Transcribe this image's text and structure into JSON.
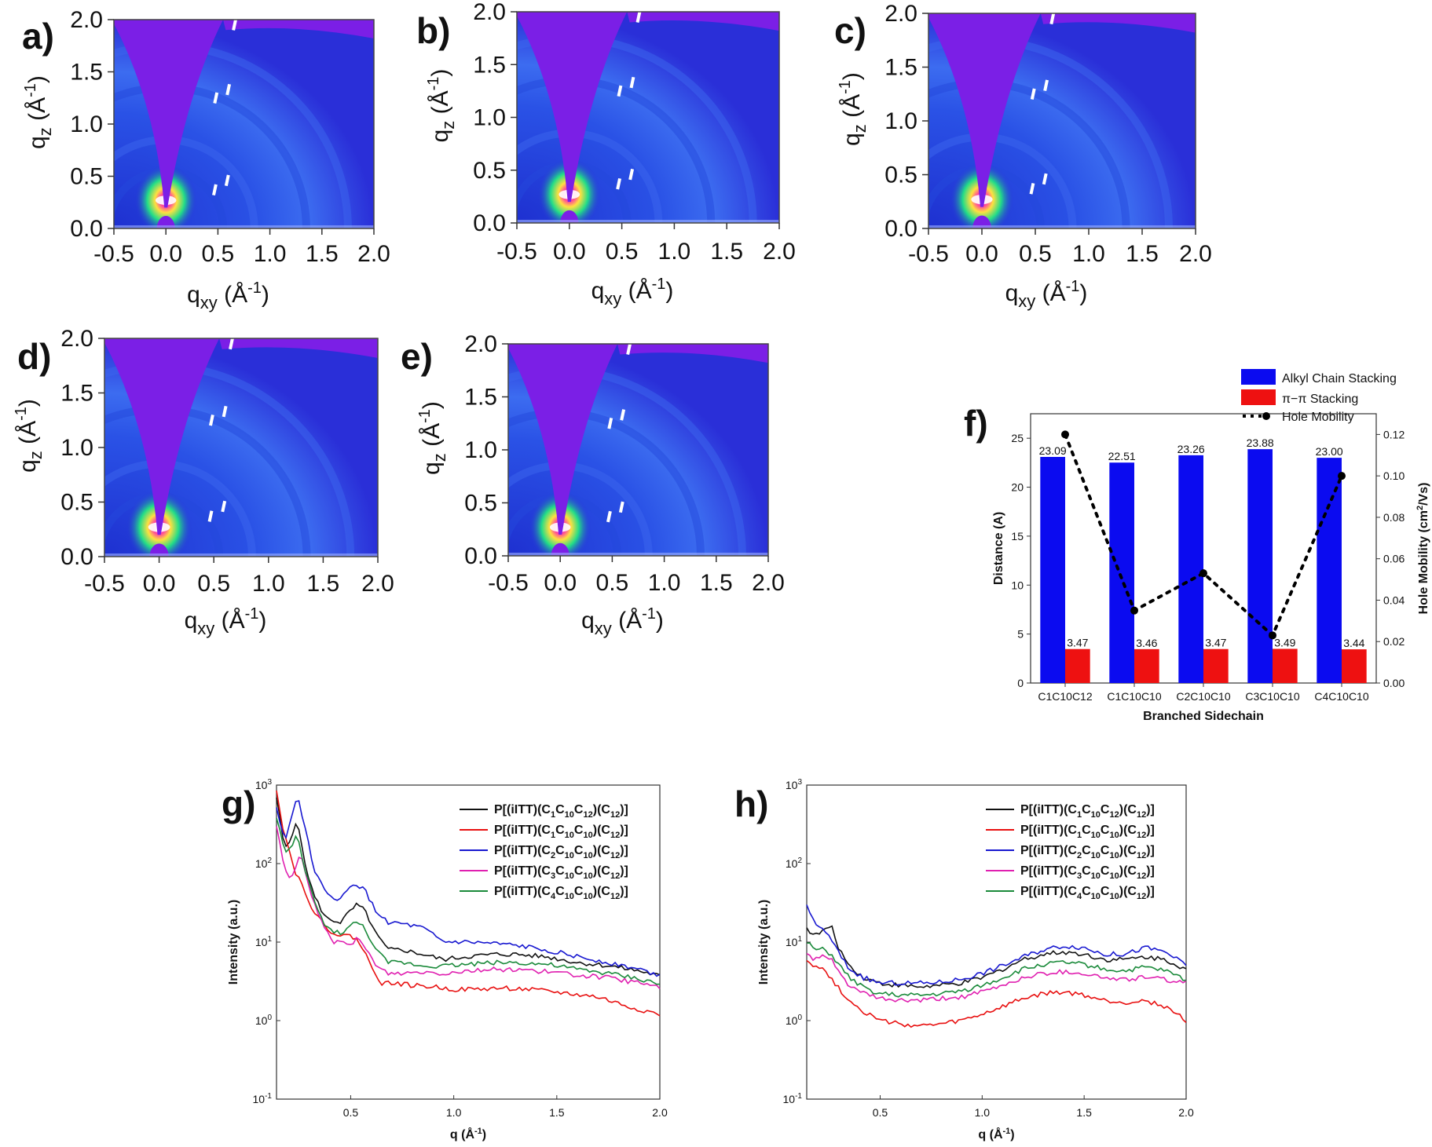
{
  "panels": [
    "a)",
    "b)",
    "c)",
    "d)",
    "e)",
    "f)",
    "g)",
    "h)"
  ],
  "giwaxs": {
    "xlabel_main": "q",
    "xlabel_sub": "xy",
    "xlabel_unit": "(Å",
    "xlabel_exp": "-1",
    "xlabel_close": ")",
    "ylabel_main": "q",
    "ylabel_sub": "z",
    "ylabel_unit": "(Å",
    "ylabel_exp": "-1",
    "ylabel_close": ")",
    "xticks": [
      "-0.5",
      "0.0",
      "0.5",
      "1.0",
      "1.5",
      "2.0"
    ],
    "yticks": [
      "0.0",
      "0.5",
      "1.0",
      "1.5",
      "2.0"
    ],
    "xlim": [
      -0.5,
      2.0
    ],
    "ylim": [
      0.0,
      2.0
    ],
    "colors": {
      "background": "#2a2fd8",
      "mask": "#7b1fe6",
      "hot": "#1fd47a",
      "peak": "#ffffff"
    }
  },
  "chart_data": [
    {
      "panel": "f)",
      "type": "bar",
      "categories": [
        "C1C10C12",
        "C1C10C10",
        "C2C10C10",
        "C3C10C10",
        "C4C10C10"
      ],
      "xlabel": "Branched Sidechain",
      "ylabel": "Distance (A)",
      "y2label_main": "Hole Mobility (cm",
      "y2label_exp": "2",
      "y2label_rest": "/Vs)",
      "ylim": [
        0,
        27.5
      ],
      "y2lim": [
        0,
        0.13
      ],
      "yticks": [
        "0",
        "5",
        "10",
        "15",
        "20",
        "25"
      ],
      "y2ticks": [
        "0.00",
        "0.02",
        "0.04",
        "0.06",
        "0.08",
        "0.10",
        "0.12"
      ],
      "series": [
        {
          "name": "Alkyl Chain Stacking",
          "color": "#0b0bf0",
          "values": [
            23.09,
            22.51,
            23.26,
            23.88,
            23.0
          ],
          "labels": [
            "23.09",
            "22.51",
            "23.26",
            "23.88",
            "23.00"
          ]
        },
        {
          "name": "π−π Stacking",
          "color": "#ee1111",
          "values": [
            3.47,
            3.46,
            3.47,
            3.49,
            3.44
          ],
          "labels": [
            "3.47",
            "3.46",
            "3.47",
            "3.49",
            "3.44"
          ]
        },
        {
          "name": "Hole Mobility",
          "color": "#000000",
          "axis": "right",
          "values": [
            0.12,
            0.035,
            0.053,
            0.023,
            0.1
          ]
        }
      ],
      "legend": "top-right"
    },
    {
      "panel": "g)",
      "type": "line",
      "xlabel": "q",
      "xlabel_unit": "(Å",
      "xlabel_exp": "-1",
      "xlabel_close": ")",
      "ylabel": "Intensity (a.u.)",
      "yscale": "log",
      "xlim": [
        0.14,
        2.0
      ],
      "ylim": [
        0.1,
        1000
      ],
      "xticks": [
        "0.5",
        "1.0",
        "1.5",
        "2.0"
      ],
      "ytick_exps": [
        "-1",
        "0",
        "1",
        "2",
        "3"
      ],
      "legend": "top-right",
      "series": [
        {
          "name": "P[(iITT)(C1C10C12)(C12)]",
          "subs": [
            "1",
            "10",
            "12"
          ],
          "color": "#111111",
          "x": [
            0.14,
            0.18,
            0.21,
            0.24,
            0.27,
            0.32,
            0.38,
            0.45,
            0.5,
            0.53,
            0.57,
            0.62,
            0.68,
            0.75,
            0.85,
            0.95,
            1.05,
            1.2,
            1.3,
            1.45,
            1.6,
            1.75,
            1.9,
            2.0
          ],
          "y": [
            700,
            150,
            200,
            400,
            120,
            40,
            20,
            18,
            25,
            30,
            25,
            13,
            8,
            8,
            7,
            6,
            6.5,
            7,
            7,
            6.5,
            5.5,
            5,
            4.3,
            3.7
          ]
        },
        {
          "name": "P[(iITT)(C1C10C10)(C12)]",
          "subs": [
            "1",
            "10",
            "10"
          ],
          "color": "#e81010",
          "x": [
            0.14,
            0.17,
            0.2,
            0.23,
            0.27,
            0.32,
            0.38,
            0.45,
            0.5,
            0.53,
            0.56,
            0.6,
            0.65,
            0.72,
            0.8,
            0.9,
            1.0,
            1.1,
            1.25,
            1.35,
            1.5,
            1.7,
            1.85,
            2.0
          ],
          "y": [
            900,
            300,
            150,
            80,
            50,
            25,
            15,
            12,
            12,
            11,
            8,
            5,
            3,
            3,
            2.8,
            2.7,
            2.5,
            2.5,
            2.6,
            2.5,
            2.3,
            2.0,
            1.5,
            1.2
          ]
        },
        {
          "name": "P[(iITT)(C2C10C10)(C12)]",
          "subs": [
            "2",
            "10",
            "10"
          ],
          "color": "#1818d0",
          "x": [
            0.14,
            0.18,
            0.21,
            0.24,
            0.27,
            0.32,
            0.38,
            0.45,
            0.5,
            0.53,
            0.57,
            0.62,
            0.68,
            0.75,
            0.85,
            0.95,
            1.05,
            1.2,
            1.3,
            1.45,
            1.6,
            1.75,
            1.9,
            2.0
          ],
          "y": [
            500,
            200,
            350,
            800,
            350,
            90,
            40,
            35,
            50,
            55,
            45,
            25,
            18,
            17,
            15,
            10,
            10,
            9.5,
            9,
            8,
            6.5,
            5.5,
            4.5,
            3.8
          ]
        },
        {
          "name": "P[(iITT)(C3C10C10)(C12)]",
          "subs": [
            "3",
            "10",
            "10"
          ],
          "color": "#e020b0",
          "x": [
            0.14,
            0.17,
            0.19,
            0.21,
            0.23,
            0.25,
            0.27,
            0.3,
            0.35,
            0.42,
            0.5,
            0.53,
            0.57,
            0.62,
            0.68,
            0.75,
            0.85,
            0.95,
            1.05,
            1.2,
            1.3,
            1.45,
            1.6,
            1.75,
            1.9,
            2.0
          ],
          "y": [
            300,
            120,
            70,
            60,
            90,
            130,
            100,
            45,
            20,
            10,
            9,
            11,
            9,
            5,
            4,
            4,
            4.2,
            4,
            4.3,
            4.5,
            4.5,
            4.2,
            3.8,
            3.5,
            3.0,
            2.7
          ]
        },
        {
          "name": "P[(iITT)(C4C10C10)(C12)]",
          "subs": [
            "4",
            "10",
            "10"
          ],
          "color": "#1a8a3a",
          "x": [
            0.14,
            0.18,
            0.21,
            0.24,
            0.27,
            0.32,
            0.38,
            0.45,
            0.5,
            0.53,
            0.57,
            0.62,
            0.68,
            0.75,
            0.85,
            0.95,
            1.05,
            1.2,
            1.3,
            1.45,
            1.6,
            1.75,
            1.9,
            2.0
          ],
          "y": [
            400,
            140,
            150,
            230,
            100,
            35,
            15,
            13,
            16,
            18,
            15,
            8,
            5.5,
            5.5,
            5,
            5,
            5.2,
            5.5,
            5.5,
            5.2,
            4.5,
            4,
            3.4,
            2.9
          ]
        }
      ]
    },
    {
      "panel": "h)",
      "type": "line",
      "xlabel": "q",
      "xlabel_unit": "(Å",
      "xlabel_exp": "-1",
      "xlabel_close": ")",
      "ylabel": "Intensity (a.u.)",
      "yscale": "log",
      "xlim": [
        0.14,
        2.0
      ],
      "ylim": [
        0.1,
        1000
      ],
      "xticks": [
        "0.5",
        "1.0",
        "1.5",
        "2.0"
      ],
      "ytick_exps": [
        "-1",
        "0",
        "1",
        "2",
        "3"
      ],
      "legend": "top-right",
      "series": [
        {
          "name": "P[(iITT)(C1C10C12)(C12)]",
          "subs": [
            "1",
            "10",
            "12"
          ],
          "color": "#111111",
          "x": [
            0.14,
            0.18,
            0.22,
            0.26,
            0.3,
            0.35,
            0.42,
            0.5,
            0.6,
            0.7,
            0.8,
            0.9,
            1.0,
            1.1,
            1.2,
            1.3,
            1.4,
            1.5,
            1.6,
            1.7,
            1.8,
            1.9,
            2.0
          ],
          "y": [
            15,
            12,
            14,
            16,
            8,
            5,
            3.5,
            3,
            2.8,
            2.7,
            2.8,
            3,
            3.5,
            4.5,
            6,
            7,
            7.5,
            7,
            6,
            6,
            6.5,
            6,
            4.5
          ]
        },
        {
          "name": "P[(iITT)(C1C10C10)(C12)]",
          "subs": [
            "1",
            "10",
            "10"
          ],
          "color": "#e81010",
          "x": [
            0.14,
            0.18,
            0.22,
            0.26,
            0.3,
            0.35,
            0.42,
            0.5,
            0.6,
            0.7,
            0.8,
            0.9,
            1.0,
            1.1,
            1.2,
            1.3,
            1.4,
            1.5,
            1.6,
            1.7,
            1.8,
            1.9,
            2.0
          ],
          "y": [
            6,
            5,
            4.5,
            3.5,
            2.5,
            1.8,
            1.3,
            1.0,
            0.9,
            0.85,
            0.9,
            1.0,
            1.2,
            1.5,
            1.9,
            2.2,
            2.3,
            2.1,
            1.8,
            1.7,
            1.8,
            1.5,
            1.0
          ]
        },
        {
          "name": "P[(iITT)(C2C10C10)(C12)]",
          "subs": [
            "2",
            "10",
            "10"
          ],
          "color": "#1818d0",
          "x": [
            0.14,
            0.18,
            0.22,
            0.26,
            0.3,
            0.35,
            0.42,
            0.5,
            0.6,
            0.7,
            0.8,
            0.9,
            1.0,
            1.1,
            1.2,
            1.3,
            1.4,
            1.5,
            1.6,
            1.7,
            1.8,
            1.9,
            2.0
          ],
          "y": [
            28,
            18,
            14,
            11,
            7,
            4.5,
            3.5,
            3,
            3,
            3,
            3.1,
            3.4,
            4,
            5,
            6.5,
            8,
            9,
            8.5,
            7,
            7,
            8.5,
            7.5,
            5
          ]
        },
        {
          "name": "P[(iITT)(C3C10C10)(C12)]",
          "subs": [
            "3",
            "10",
            "10"
          ],
          "color": "#e020b0",
          "x": [
            0.14,
            0.18,
            0.22,
            0.26,
            0.3,
            0.35,
            0.42,
            0.5,
            0.6,
            0.7,
            0.8,
            0.9,
            1.0,
            1.1,
            1.2,
            1.3,
            1.4,
            1.5,
            1.6,
            1.7,
            1.8,
            1.9,
            2.0
          ],
          "y": [
            7,
            6,
            6.5,
            6,
            4,
            2.8,
            2.2,
            1.9,
            1.8,
            1.8,
            1.9,
            2,
            2.3,
            2.8,
            3.5,
            4,
            4.2,
            4,
            3.5,
            3.3,
            3.6,
            3.3,
            3
          ]
        },
        {
          "name": "P[(iITT)(C4C10C10)(C12)]",
          "subs": [
            "4",
            "10",
            "10"
          ],
          "color": "#1a8a3a",
          "x": [
            0.14,
            0.18,
            0.22,
            0.26,
            0.3,
            0.35,
            0.42,
            0.5,
            0.6,
            0.7,
            0.8,
            0.9,
            1.0,
            1.1,
            1.2,
            1.3,
            1.4,
            1.5,
            1.6,
            1.7,
            1.8,
            1.9,
            2.0
          ],
          "y": [
            10,
            8,
            8,
            7,
            5,
            3.5,
            2.6,
            2.2,
            2.1,
            2.1,
            2.2,
            2.4,
            2.8,
            3.5,
            4.5,
            5.2,
            5.5,
            5.2,
            4.5,
            4.3,
            4.8,
            4.3,
            3.3
          ]
        }
      ]
    }
  ]
}
